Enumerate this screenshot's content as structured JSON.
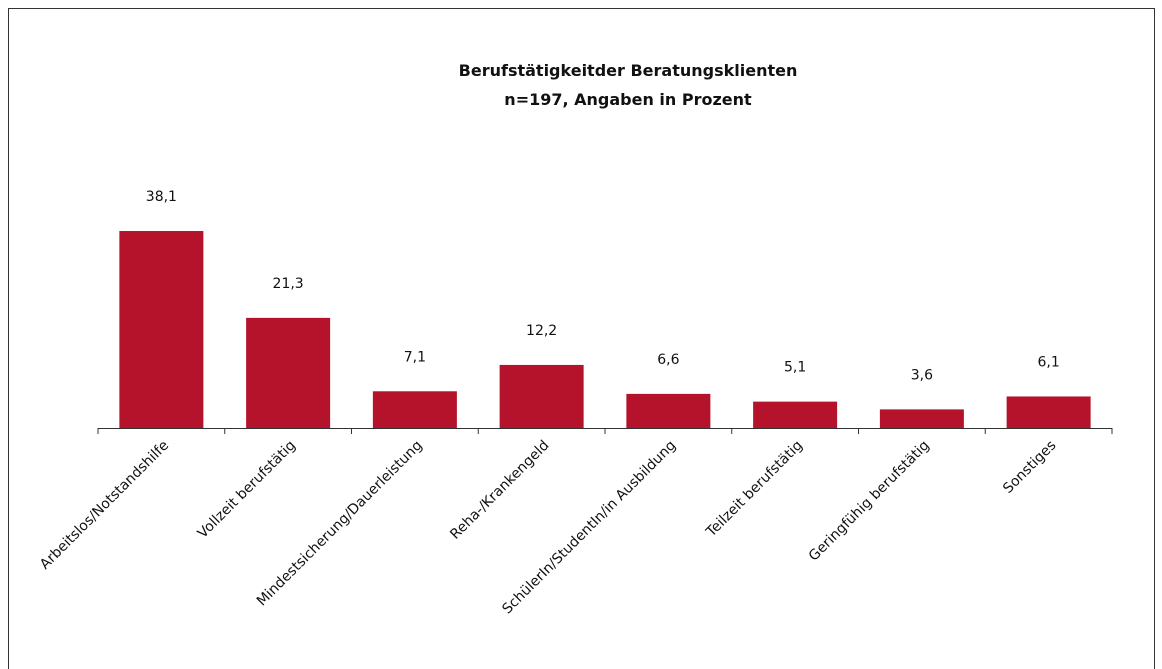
{
  "chart_data": {
    "type": "bar",
    "title": "Berufstätigkeitder Beratungsklienten",
    "subtitle": "n=197, Angaben in Prozent",
    "categories": [
      "Arbeitslos/Notstandshilfe",
      "Vollzeit berufstätig",
      "Mindestsicherung/Dauerleistung",
      "Reha-/Krankengeld",
      "SchülerIn/StudentIn/in Ausbildung",
      "Teilzeit berufstätig",
      "Geringfühig berufstätig",
      "Sonstiges"
    ],
    "values": [
      38.1,
      21.3,
      7.1,
      12.2,
      6.6,
      5.1,
      3.6,
      6.1
    ],
    "value_labels": [
      "38,1",
      "21,3",
      "7,1",
      "12,2",
      "6,6",
      "5,1",
      "3,6",
      "6,1"
    ],
    "color": "#b5122b"
  }
}
